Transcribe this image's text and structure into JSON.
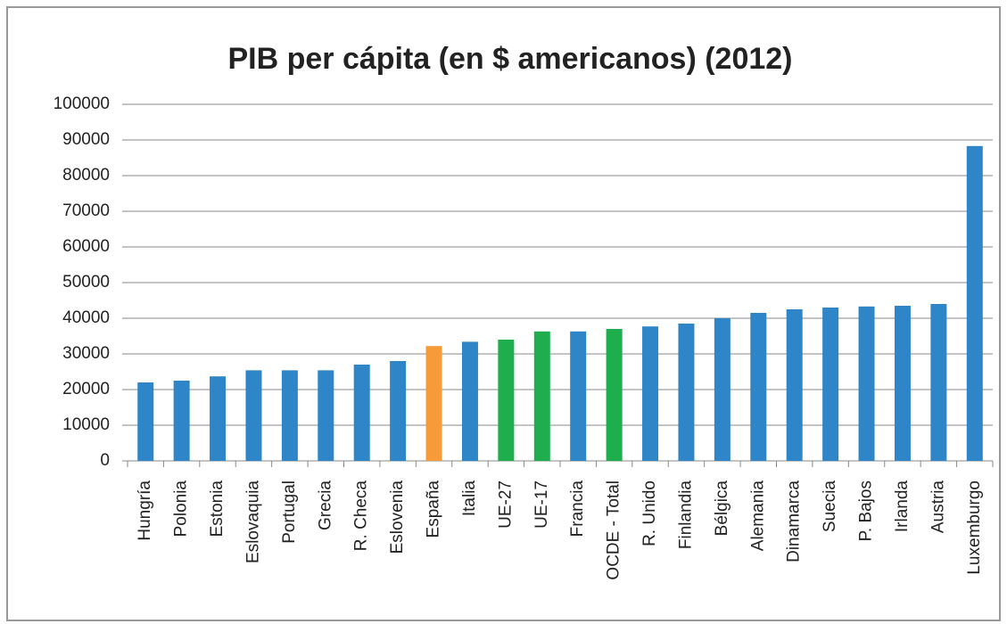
{
  "chart_data": {
    "type": "bar",
    "title": "PIB per cápita (en $ americanos) (2012)",
    "categories": [
      "Hungría",
      "Polonia",
      "Estonia",
      "Eslovaquia",
      "Portugal",
      "Grecia",
      "R. Checa",
      "Eslovenia",
      "España",
      "Italia",
      "UE-27",
      "UE-17",
      "Francia",
      "OCDE - Total",
      "R. Unido",
      "Finlandia",
      "Bélgica",
      "Alemania",
      "Dinamarca",
      "Suecia",
      "P. Bajos",
      "Irlanda",
      "Austria",
      "Luxemburgo"
    ],
    "values": [
      22000,
      22500,
      23700,
      25400,
      25400,
      25400,
      27000,
      28000,
      32200,
      33400,
      34000,
      36300,
      36300,
      37000,
      37700,
      38500,
      40000,
      41500,
      42500,
      43000,
      43300,
      43500,
      44000,
      88300
    ],
    "colors": [
      "#2e86c8",
      "#2e86c8",
      "#2e86c8",
      "#2e86c8",
      "#2e86c8",
      "#2e86c8",
      "#2e86c8",
      "#2e86c8",
      "#f79a3a",
      "#2e86c8",
      "#1fae4e",
      "#1fae4e",
      "#2e86c8",
      "#1fae4e",
      "#2e86c8",
      "#2e86c8",
      "#2e86c8",
      "#2e86c8",
      "#2e86c8",
      "#2e86c8",
      "#2e86c8",
      "#2e86c8",
      "#2e86c8",
      "#2e86c8"
    ],
    "ylim": [
      0,
      100000
    ],
    "yticks": [
      0,
      10000,
      20000,
      30000,
      40000,
      50000,
      60000,
      70000,
      80000,
      90000,
      100000
    ],
    "grid": true
  }
}
